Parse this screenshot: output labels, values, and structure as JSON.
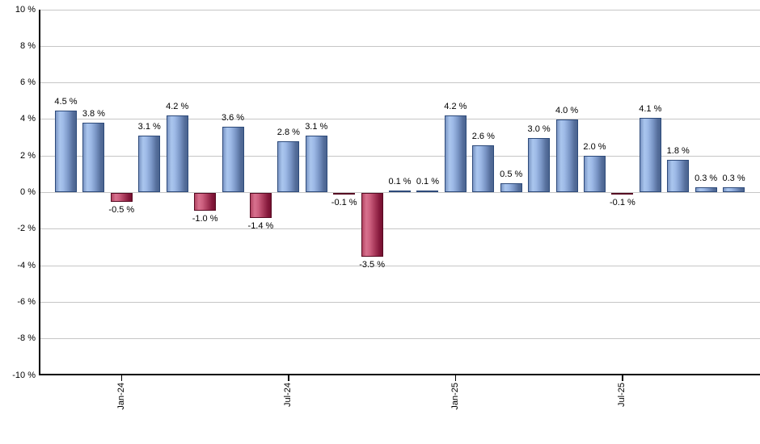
{
  "chart_data": {
    "type": "bar",
    "title": "",
    "xlabel": "",
    "ylabel": "",
    "grid": "horizontal",
    "legend": "none",
    "ylim": [
      -10,
      10
    ],
    "ytick_step": 2,
    "yticks": {
      "values": [
        10,
        8,
        6,
        4,
        2,
        0,
        -2,
        -4,
        -6,
        -8,
        -10
      ],
      "labels": [
        "10 %",
        "8 %",
        "6 %",
        "4 %",
        "2 %",
        "0 %",
        "-2 %",
        "-4 %",
        "-6 %",
        "-8 %",
        "-10 %"
      ]
    },
    "values": [
      4.5,
      3.8,
      -0.5,
      3.1,
      4.2,
      -1.0,
      3.6,
      -1.4,
      2.8,
      3.1,
      -0.1,
      -3.5,
      0.1,
      0.1,
      4.2,
      2.6,
      0.5,
      3.0,
      4.0,
      2.0,
      -0.1,
      4.1,
      1.8,
      0.3,
      0.3
    ],
    "value_labels": [
      "4.5 %",
      "3.8 %",
      "-0.5 %",
      "3.1 %",
      "4.2 %",
      "-1.0 %",
      "3.6 %",
      "-1.4 %",
      "2.8 %",
      "3.1 %",
      "-0.1 %",
      "-3.5 %",
      "0.1 %",
      "0.1 %",
      "4.2 %",
      "2.6 %",
      "0.5 %",
      "3.0 %",
      "4.0 %",
      "2.0 %",
      "-0.1 %",
      "4.1 %",
      "1.8 %",
      "0.3 %",
      "0.3 %"
    ],
    "x_ticks": [
      {
        "bar_index": 2,
        "label": "Jan-24"
      },
      {
        "bar_index": 8,
        "label": "Jul-24"
      },
      {
        "bar_index": 14,
        "label": "Jan-25"
      },
      {
        "bar_index": 20,
        "label": "Jul-25"
      }
    ],
    "colors": {
      "positive_bar_light": "#aac6ee",
      "positive_bar_dark": "#4a648f",
      "positive_bar_border": "#2d4a7a",
      "negative_bar_light": "#d8718e",
      "negative_bar_dark": "#75102f",
      "negative_bar_border": "#570a22",
      "gridline": "#c6c6c6",
      "axis": "#000000",
      "text": "#000000",
      "background": "#ffffff"
    }
  }
}
